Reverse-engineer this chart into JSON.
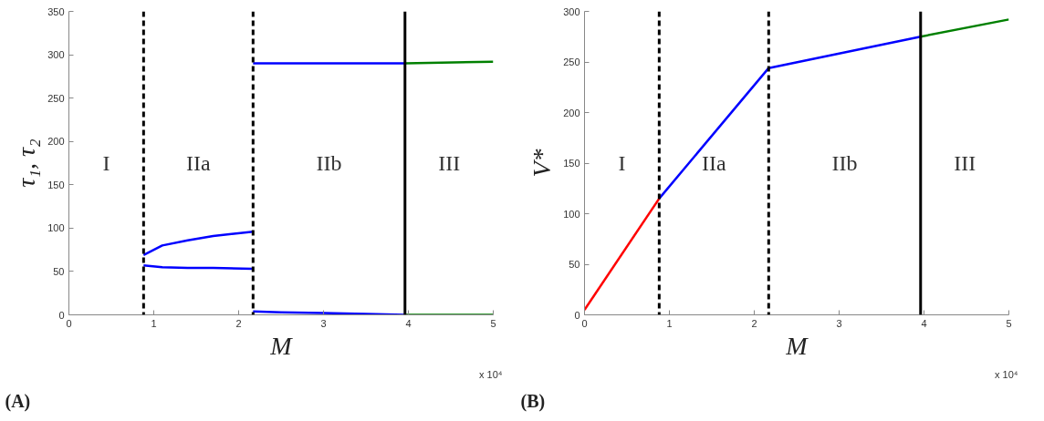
{
  "chart_data": [
    {
      "type": "line",
      "xlabel": "M",
      "ylabel": "τ₁, τ₂",
      "xlim": [
        0,
        5
      ],
      "ylim": [
        0,
        350
      ],
      "xticks": [
        0,
        1,
        2,
        3,
        4,
        5
      ],
      "yticks": [
        0,
        50,
        100,
        150,
        200,
        250,
        300,
        350
      ],
      "grid": false,
      "series": [
        {
          "color": "#0000ff",
          "x": [
            0.88,
            1.1,
            1.4,
            1.7,
            2.17
          ],
          "values": [
            69,
            80,
            86,
            91,
            96
          ]
        },
        {
          "color": "#0000ff",
          "x": [
            0.88,
            1.1,
            1.4,
            1.7,
            2.17
          ],
          "values": [
            57,
            55,
            54,
            54,
            53
          ]
        },
        {
          "color": "#0000ff",
          "x": [
            2.17,
            3.0,
            3.96
          ],
          "values": [
            290,
            290,
            290
          ]
        },
        {
          "color": "#0000ff",
          "x": [
            2.17,
            2.5,
            3.0,
            3.5,
            3.96
          ],
          "values": [
            4,
            3,
            2,
            1,
            0
          ]
        },
        {
          "color": "#008000",
          "x": [
            3.96,
            5
          ],
          "values": [
            290,
            292
          ]
        },
        {
          "color": "#008000",
          "x": [
            3.96,
            5
          ],
          "values": [
            0,
            0
          ]
        }
      ],
      "ref_lines": [
        {
          "axis": "x",
          "value": 0.88,
          "color": "#000000",
          "line_style": "dashed"
        },
        {
          "axis": "x",
          "value": 2.17,
          "color": "#000000",
          "line_style": "dashed"
        },
        {
          "axis": "x",
          "value": 3.96,
          "color": "#000000",
          "line_style": "solid"
        }
      ],
      "annotations": [
        "x 10⁴",
        "(A)",
        "I",
        "IIa",
        "IIb",
        "III"
      ]
    },
    {
      "type": "line",
      "xlabel": "M",
      "ylabel": "V*",
      "xlim": [
        0,
        5
      ],
      "ylim": [
        0,
        300
      ],
      "xticks": [
        0,
        1,
        2,
        3,
        4,
        5
      ],
      "yticks": [
        0,
        50,
        100,
        150,
        200,
        250,
        300
      ],
      "grid": false,
      "series": [
        {
          "color": "#ff0000",
          "x": [
            0,
            0.88
          ],
          "values": [
            5,
            115
          ]
        },
        {
          "color": "#0000ff",
          "x": [
            0.88,
            2.17,
            3.96
          ],
          "values": [
            115,
            244,
            275
          ]
        },
        {
          "color": "#008000",
          "x": [
            3.96,
            5
          ],
          "values": [
            275,
            292
          ]
        }
      ],
      "ref_lines": [
        {
          "axis": "x",
          "value": 0.88,
          "color": "#000000",
          "line_style": "dashed"
        },
        {
          "axis": "x",
          "value": 2.17,
          "color": "#000000",
          "line_style": "dashed"
        },
        {
          "axis": "x",
          "value": 3.96,
          "color": "#000000",
          "line_style": "solid"
        }
      ],
      "annotations": [
        "x 10⁴",
        "(B)",
        "I",
        "IIa",
        "IIb",
        "III"
      ]
    }
  ]
}
